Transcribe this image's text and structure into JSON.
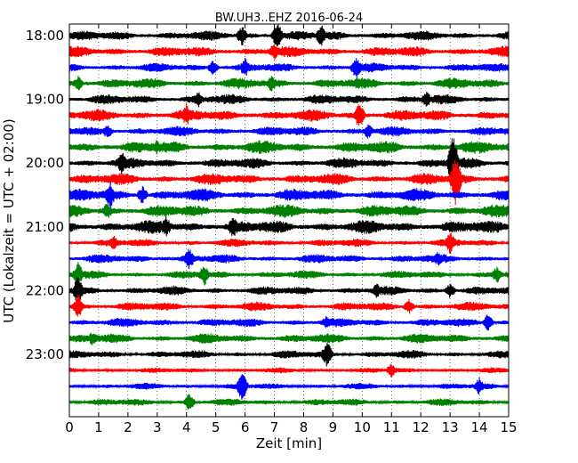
{
  "chart_data": {
    "type": "line",
    "title": "BW.UH3..EHZ 2016-06-24",
    "xlabel": "Zeit  [min]",
    "ylabel": "UTC (Lokalzeit = UTC + 02:00)",
    "xlim": [
      0,
      15
    ],
    "x_ticks": [
      "0",
      "1",
      "2",
      "3",
      "4",
      "5",
      "6",
      "7",
      "8",
      "9",
      "10",
      "11",
      "12",
      "13",
      "14",
      "15"
    ],
    "y_ticks": [
      "18:00",
      "19:00",
      "20:00",
      "21:00",
      "22:00",
      "23:00"
    ],
    "grid": "vertical dotted",
    "trace_colors": [
      "#000000",
      "#ff0000",
      "#0000ff",
      "#008000"
    ],
    "traces": [
      {
        "start": "18:00",
        "amp": 0.55,
        "events": [
          {
            "t": 5.9,
            "a": 1.4
          },
          {
            "t": 7.1,
            "a": 1.8
          },
          {
            "t": 8.6,
            "a": 1.5
          }
        ]
      },
      {
        "start": "18:15",
        "amp": 0.6,
        "events": [
          {
            "t": 7.0,
            "a": 1.2
          }
        ]
      },
      {
        "start": "18:30",
        "amp": 0.5,
        "events": [
          {
            "t": 4.9,
            "a": 1.0
          },
          {
            "t": 6.0,
            "a": 1.3
          },
          {
            "t": 9.8,
            "a": 1.5
          }
        ]
      },
      {
        "start": "18:45",
        "amp": 0.6,
        "events": [
          {
            "t": 0.3,
            "a": 1.0
          },
          {
            "t": 6.9,
            "a": 1.1
          }
        ]
      },
      {
        "start": "19:00",
        "amp": 0.55,
        "events": [
          {
            "t": 4.4,
            "a": 1.2
          },
          {
            "t": 12.2,
            "a": 1.1
          }
        ]
      },
      {
        "start": "19:15",
        "amp": 0.65,
        "events": [
          {
            "t": 4.0,
            "a": 1.5
          },
          {
            "t": 9.9,
            "a": 1.8
          }
        ]
      },
      {
        "start": "19:30",
        "amp": 0.55,
        "events": [
          {
            "t": 1.3,
            "a": 1.0
          },
          {
            "t": 10.2,
            "a": 1.0
          }
        ]
      },
      {
        "start": "19:45",
        "amp": 0.7,
        "events": [
          {
            "t": 3.0,
            "a": 1.0
          }
        ]
      },
      {
        "start": "20:00",
        "amp": 0.6,
        "events": [
          {
            "t": 1.8,
            "a": 1.6
          },
          {
            "t": 13.1,
            "a": 4.0
          }
        ]
      },
      {
        "start": "20:15",
        "amp": 0.65,
        "events": [
          {
            "t": 13.2,
            "a": 3.5
          }
        ]
      },
      {
        "start": "20:30",
        "amp": 0.7,
        "events": [
          {
            "t": 1.4,
            "a": 1.8
          },
          {
            "t": 2.5,
            "a": 1.2
          }
        ]
      },
      {
        "start": "20:45",
        "amp": 0.7,
        "events": [
          {
            "t": 1.3,
            "a": 1.2
          }
        ]
      },
      {
        "start": "21:00",
        "amp": 0.75,
        "events": [
          {
            "t": 3.3,
            "a": 1.4
          },
          {
            "t": 5.6,
            "a": 1.5
          }
        ]
      },
      {
        "start": "21:15",
        "amp": 0.45,
        "events": [
          {
            "t": 1.5,
            "a": 1.0
          },
          {
            "t": 13.0,
            "a": 1.5
          }
        ]
      },
      {
        "start": "21:30",
        "amp": 0.5,
        "events": [
          {
            "t": 4.1,
            "a": 1.5
          },
          {
            "t": 12.6,
            "a": 1.0
          }
        ]
      },
      {
        "start": "21:45",
        "amp": 0.45,
        "events": [
          {
            "t": 0.3,
            "a": 1.6
          },
          {
            "t": 4.6,
            "a": 1.5
          },
          {
            "t": 14.6,
            "a": 1.1
          }
        ]
      },
      {
        "start": "22:00",
        "amp": 0.5,
        "events": [
          {
            "t": 0.3,
            "a": 2.0
          },
          {
            "t": 10.5,
            "a": 1.0
          },
          {
            "t": 13.0,
            "a": 1.0
          }
        ]
      },
      {
        "start": "22:15",
        "amp": 0.5,
        "events": [
          {
            "t": 0.3,
            "a": 1.6
          },
          {
            "t": 11.6,
            "a": 1.0
          }
        ]
      },
      {
        "start": "22:30",
        "amp": 0.5,
        "events": [
          {
            "t": 8.8,
            "a": 1.0
          },
          {
            "t": 14.3,
            "a": 1.2
          }
        ]
      },
      {
        "start": "22:45",
        "amp": 0.55,
        "events": [
          {
            "t": 0.8,
            "a": 1.0
          }
        ]
      },
      {
        "start": "23:00",
        "amp": 0.45,
        "events": [
          {
            "t": 8.8,
            "a": 1.8
          }
        ]
      },
      {
        "start": "23:15",
        "amp": 0.3,
        "events": [
          {
            "t": 11.0,
            "a": 1.0
          }
        ]
      },
      {
        "start": "23:30",
        "amp": 0.35,
        "events": [
          {
            "t": 5.9,
            "a": 2.0
          },
          {
            "t": 14.0,
            "a": 1.2
          }
        ]
      },
      {
        "start": "23:45",
        "amp": 0.4,
        "events": [
          {
            "t": 4.1,
            "a": 1.2
          }
        ]
      }
    ]
  }
}
